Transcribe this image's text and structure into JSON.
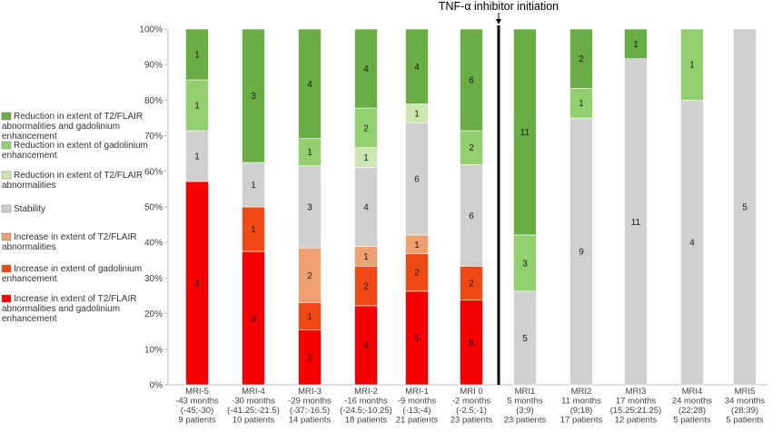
{
  "chart_data": {
    "type": "bar",
    "stacked": true,
    "normalized": true,
    "annotation": "TNF-α inhibitor initiation",
    "y_ticks": [
      "0%",
      "10%",
      "20%",
      "30%",
      "40%",
      "50%",
      "60%",
      "70%",
      "80%",
      "90%",
      "100%"
    ],
    "ylim": [
      0,
      100
    ],
    "grid": false,
    "legend_position": "left",
    "categories": [
      {
        "name": "MRI-5",
        "months": "-43 months",
        "range": "(-45;-30)",
        "patients": "9 patients"
      },
      {
        "name": "MRI-4",
        "months": "-30 months",
        "range": "(-41.25;-21.5)",
        "patients": "10 patients"
      },
      {
        "name": "MRI-3",
        "months": "-29 months",
        "range": "(-37;-16.5)",
        "patients": "14 patients"
      },
      {
        "name": "MRI-2",
        "months": "-16 months",
        "range": "(-24.5;-10.25)",
        "patients": "18 patients"
      },
      {
        "name": "MRI-1",
        "months": "-9 months",
        "range": "(-13;-4)",
        "patients": "21 patients"
      },
      {
        "name": "MRI 0",
        "months": "-2 months",
        "range": "(-2.5;-1)",
        "patients": "23 patients"
      },
      {
        "name": "MRI1",
        "months": "5 months",
        "range": "(3;9)",
        "patients": "23 patients"
      },
      {
        "name": "MRI2",
        "months": "11 months",
        "range": "(9;18)",
        "patients": "17 patients"
      },
      {
        "name": "MRI3",
        "months": "17 months",
        "range": "(15.25;21.25)",
        "patients": "12 patients"
      },
      {
        "name": "MRI4",
        "months": "24 months",
        "range": "(22;28)",
        "patients": "5 patients"
      },
      {
        "name": "MRI5",
        "months": "34 months",
        "range": "(28;39)",
        "patients": "5 patients"
      }
    ],
    "divider_after_index": 5,
    "series": [
      {
        "name": "Increase in extent of T2/FLAIR abnormalities and gadolinium enhancement",
        "color": "#f50000",
        "values": [
          4,
          3,
          2,
          4,
          5,
          5,
          0,
          0,
          0,
          0,
          0
        ]
      },
      {
        "name": "Increase in extent of gadolinium enhancement",
        "color": "#ef4a14",
        "values": [
          0,
          1,
          1,
          2,
          2,
          2,
          0,
          0,
          0,
          0,
          0
        ]
      },
      {
        "name": "Increase in extent of T2/FLAIR abnormalities",
        "color": "#f0a070",
        "values": [
          0,
          0,
          2,
          1,
          1,
          0,
          0,
          0,
          0,
          0,
          0
        ]
      },
      {
        "name": "Stability",
        "color": "#d0d0d0",
        "values": [
          1,
          1,
          3,
          4,
          6,
          6,
          5,
          9,
          11,
          4,
          5
        ]
      },
      {
        "name": "Reduction in extent of T2/FLAIR abnormalities",
        "color": "#cce8b0",
        "values": [
          0,
          0,
          0,
          1,
          1,
          0,
          0,
          0,
          0,
          0,
          0
        ]
      },
      {
        "name": "Reduction in extent of gadolinium enhancement",
        "color": "#92cf6e",
        "values": [
          1,
          0,
          1,
          2,
          0,
          2,
          3,
          1,
          0,
          1,
          0
        ]
      },
      {
        "name": "Reduction in extent of T2/FLAIR abnormalities and gadolinium enhancement",
        "color": "#6aad44",
        "values": [
          1,
          3,
          4,
          4,
          4,
          6,
          11,
          2,
          1,
          0,
          0
        ]
      }
    ]
  }
}
